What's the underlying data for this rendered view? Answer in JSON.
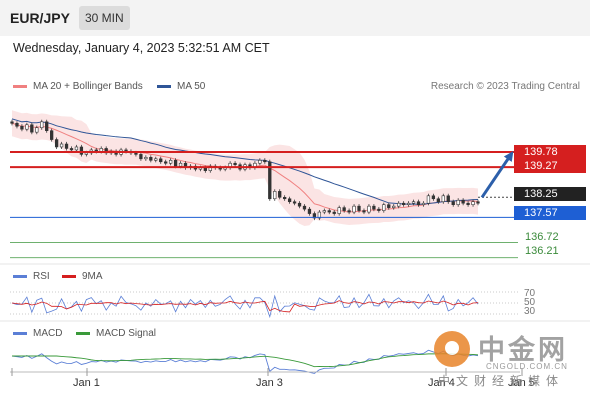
{
  "header": {
    "symbol": "EUR/JPY",
    "timeframe": "30 MIN"
  },
  "timestamp": "Wednesday, January 4, 2023 5:32:51 AM CET",
  "legend": {
    "bollinger": "MA 20 + Bollinger Bands",
    "ma50": "MA 50",
    "source": "Research © 2023 Trading Central"
  },
  "levels": {
    "r1": "139.78",
    "r2": "139.27",
    "last": "138.25",
    "s1": "137.57",
    "g1": "136.72",
    "g2": "136.21"
  },
  "rsi_panel": {
    "rsi_label": "RSI",
    "ma_label": "9MA",
    "levels": [
      "70",
      "50",
      "30"
    ]
  },
  "macd_panel": {
    "macd_label": "MACD",
    "signal_label": "MACD Signal"
  },
  "x_labels": [
    "Jan 1",
    "Jan 3",
    "Jan 4",
    "Jan 5"
  ],
  "watermark": {
    "cn": "中金网",
    "url": "CNGOLD.COM.CN",
    "sub": "中文财经新媒体"
  },
  "colors": {
    "resistance": "#d51f1f",
    "support": "#1e5fd4",
    "target": "#5aa55a",
    "last": "#222222",
    "bollinger": "#f08080",
    "ma50": "#2f5597",
    "rsi": "#5b7fd6",
    "rsi_ma": "#d51f1f",
    "macd": "#5b7fd6",
    "macd_signal": "#3a9a3a"
  },
  "chart_data": {
    "type": "candlestick",
    "title": "EUR/JPY 30 MIN",
    "y_levels": {
      "resistance": [
        139.78,
        139.27
      ],
      "last": 138.25,
      "support": [
        137.57
      ],
      "targets": [
        136.72,
        136.21
      ]
    },
    "ylim": [
      136.2,
      141.2
    ],
    "close_series": [
      140.75,
      140.65,
      140.55,
      140.7,
      140.45,
      140.6,
      140.8,
      140.5,
      140.2,
      139.95,
      140.05,
      139.9,
      139.85,
      139.95,
      139.7,
      139.75,
      139.85,
      139.8,
      139.9,
      139.75,
      139.8,
      139.7,
      139.85,
      139.8,
      139.75,
      139.7,
      139.55,
      139.6,
      139.5,
      139.55,
      139.45,
      139.4,
      139.5,
      139.3,
      139.4,
      139.25,
      139.3,
      139.2,
      139.25,
      139.15,
      139.3,
      139.25,
      139.2,
      139.25,
      139.4,
      139.35,
      139.2,
      139.35,
      139.25,
      139.4,
      139.5,
      139.45,
      138.2,
      138.45,
      138.25,
      138.2,
      138.1,
      138.05,
      137.95,
      137.85,
      137.7,
      137.55,
      137.75,
      137.8,
      137.75,
      137.7,
      137.9,
      137.8,
      137.75,
      137.95,
      137.8,
      137.75,
      137.95,
      137.85,
      137.8,
      138.0,
      137.9,
      137.95,
      138.05,
      138.0,
      138.05,
      138.1,
      138.0,
      138.05,
      138.3,
      138.2,
      138.1,
      138.3,
      138.1,
      138.0,
      138.15,
      138.05,
      138.0,
      138.1,
      138.05
    ],
    "x_labels": [
      "Jan 1",
      "Jan 3",
      "Jan 4",
      "Jan 5"
    ],
    "rsi_levels": [
      70,
      50,
      30
    ],
    "series": [
      {
        "name": "MA 20 + Bollinger Bands"
      },
      {
        "name": "MA 50"
      },
      {
        "name": "RSI"
      },
      {
        "name": "9MA"
      },
      {
        "name": "MACD"
      },
      {
        "name": "MACD Signal"
      }
    ]
  }
}
